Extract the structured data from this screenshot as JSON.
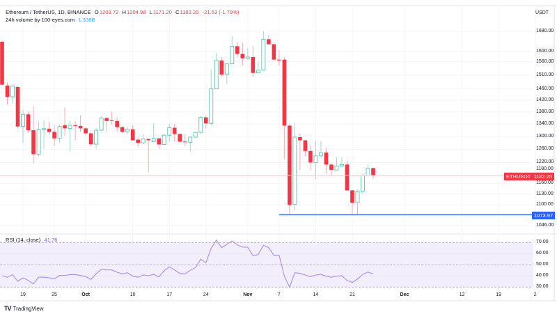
{
  "header": {
    "symbol": "Ethereum / TetherUS, 1D, BINANCE",
    "o_label": "O",
    "o_value": "1203.72",
    "h_label": "H",
    "h_value": "1204.98",
    "l_label": "L",
    "l_value": "1171.20",
    "c_label": "C",
    "c_value": "1182.20",
    "change": "-21.53 (-1.79%)",
    "volume_label": "24h volume by 100-eyes.com",
    "volume_value": "1.338B"
  },
  "price_axis": {
    "currency": "USDT",
    "labels": [
      "1680.00",
      "1600.00",
      "1560.00",
      "1510.00",
      "1460.00",
      "1420.00",
      "1380.00",
      "1340.00",
      "1300.00",
      "1260.00",
      "1220.00",
      "1180.00",
      "1160.00",
      "1130.00",
      "1100.00",
      "1046.00"
    ]
  },
  "tags": {
    "symbol_tag": "ETHUSDT",
    "last_price": "1182.20",
    "low_line": "1073.97"
  },
  "rsi": {
    "label": "RSI (14, close)",
    "value": "41.76",
    "axis_labels": [
      "70.00",
      "60.00",
      "50.00",
      "40.00",
      "30.00"
    ]
  },
  "time_axis": [
    {
      "label": "19",
      "index": 4
    },
    {
      "label": "25",
      "index": 10
    },
    {
      "label": "Oct",
      "index": 16,
      "bold": true
    },
    {
      "label": "10",
      "index": 25
    },
    {
      "label": "17",
      "index": 32
    },
    {
      "label": "24",
      "index": 39
    },
    {
      "label": "Nov",
      "index": 47,
      "bold": true
    },
    {
      "label": "7",
      "index": 53
    },
    {
      "label": "14",
      "index": 60
    },
    {
      "label": "21",
      "index": 67
    },
    {
      "label": "Dec",
      "index": 77,
      "bold": true
    },
    {
      "label": "12",
      "index": 88
    },
    {
      "label": "19",
      "index": 95
    },
    {
      "label": "2",
      "index": 102
    }
  ],
  "footer": {
    "brand": "TradingView"
  },
  "colors": {
    "up": "#5cc3b0",
    "down": "#f23645",
    "rsi_line": "#a98de6",
    "rsi_fill": "#f2eefb",
    "low_line": "#2962ff"
  },
  "chart_data": {
    "type": "candlestick",
    "ohlc_order": [
      "open",
      "high",
      "low",
      "close"
    ],
    "candles": [
      [
        1638,
        1640,
        1470,
        1475
      ],
      [
        1472,
        1482,
        1405,
        1432
      ],
      [
        1432,
        1478,
        1408,
        1470
      ],
      [
        1467,
        1470,
        1325,
        1332
      ],
      [
        1332,
        1388,
        1280,
        1372
      ],
      [
        1372,
        1382,
        1312,
        1320
      ],
      [
        1320,
        1400,
        1218,
        1245
      ],
      [
        1245,
        1348,
        1238,
        1322
      ],
      [
        1322,
        1352,
        1262,
        1325
      ],
      [
        1325,
        1348,
        1305,
        1315
      ],
      [
        1315,
        1335,
        1270,
        1294
      ],
      [
        1294,
        1338,
        1280,
        1332
      ],
      [
        1336,
        1396,
        1302,
        1326
      ],
      [
        1326,
        1352,
        1255,
        1336
      ],
      [
        1336,
        1350,
        1288,
        1334
      ],
      [
        1334,
        1368,
        1315,
        1326
      ],
      [
        1326,
        1330,
        1303,
        1310
      ],
      [
        1310,
        1316,
        1270,
        1276
      ],
      [
        1276,
        1328,
        1262,
        1320
      ],
      [
        1320,
        1366,
        1318,
        1360
      ],
      [
        1360,
        1362,
        1316,
        1350
      ],
      [
        1352,
        1382,
        1338,
        1350
      ],
      [
        1350,
        1360,
        1316,
        1330
      ],
      [
        1330,
        1334,
        1310,
        1315
      ],
      [
        1315,
        1330,
        1308,
        1323
      ],
      [
        1323,
        1336,
        1288,
        1288
      ],
      [
        1290,
        1298,
        1268,
        1280
      ],
      [
        1280,
        1306,
        1276,
        1292
      ],
      [
        1292,
        1294,
        1190,
        1288
      ],
      [
        1284,
        1342,
        1284,
        1294
      ],
      [
        1294,
        1296,
        1262,
        1275
      ],
      [
        1275,
        1308,
        1274,
        1304
      ],
      [
        1304,
        1340,
        1284,
        1328
      ],
      [
        1328,
        1340,
        1284,
        1308
      ],
      [
        1308,
        1310,
        1280,
        1284
      ],
      [
        1284,
        1308,
        1270,
        1282
      ],
      [
        1282,
        1300,
        1252,
        1298
      ],
      [
        1298,
        1316,
        1296,
        1313
      ],
      [
        1313,
        1368,
        1308,
        1362
      ],
      [
        1362,
        1368,
        1326,
        1342
      ],
      [
        1342,
        1530,
        1335,
        1460
      ],
      [
        1460,
        1595,
        1460,
        1565
      ],
      [
        1565,
        1578,
        1505,
        1512
      ],
      [
        1512,
        1552,
        1478,
        1552
      ],
      [
        1552,
        1660,
        1550,
        1620
      ],
      [
        1620,
        1638,
        1577,
        1590
      ],
      [
        1590,
        1633,
        1545,
        1573
      ],
      [
        1573,
        1612,
        1567,
        1578
      ],
      [
        1578,
        1620,
        1505,
        1518
      ],
      [
        1518,
        1560,
        1518,
        1528
      ],
      [
        1528,
        1680,
        1525,
        1648
      ],
      [
        1648,
        1666,
        1625,
        1628
      ],
      [
        1628,
        1638,
        1565,
        1568
      ],
      [
        1568,
        1605,
        1545,
        1565
      ],
      [
        1568,
        1578,
        1230,
        1335
      ],
      [
        1335,
        1340,
        1073,
        1100
      ],
      [
        1102,
        1345,
        1085,
        1298
      ],
      [
        1298,
        1310,
        1198,
        1288
      ],
      [
        1288,
        1288,
        1238,
        1255
      ],
      [
        1255,
        1272,
        1198,
        1220
      ],
      [
        1220,
        1286,
        1172,
        1240
      ],
      [
        1240,
        1286,
        1235,
        1250
      ],
      [
        1250,
        1264,
        1188,
        1214
      ],
      [
        1214,
        1216,
        1180,
        1198
      ],
      [
        1198,
        1236,
        1198,
        1210
      ],
      [
        1210,
        1236,
        1208,
        1214
      ],
      [
        1214,
        1225,
        1140,
        1140
      ],
      [
        1140,
        1142,
        1075,
        1106
      ],
      [
        1106,
        1142,
        1073.97,
        1138
      ],
      [
        1138,
        1188,
        1128,
        1182
      ],
      [
        1182,
        1215,
        1180,
        1203.72
      ],
      [
        1203.72,
        1204.98,
        1171.2,
        1182.2
      ]
    ],
    "last_price": 1182.2,
    "low_line_price": 1073.97,
    "price_range": [
      1046,
      1680
    ],
    "scale": "log",
    "rsi_values": [
      40.2,
      38.8,
      41.2,
      35.2,
      38.3,
      36,
      32.9,
      38.8,
      38.8,
      38.3,
      37.3,
      40.4,
      40.4,
      41.2,
      41.2,
      40.4,
      39.4,
      36.9,
      41.9,
      46,
      45.4,
      45.4,
      43.3,
      41.9,
      42.9,
      39.8,
      38.8,
      40.8,
      40.2,
      41.4,
      39.1,
      44.6,
      48.1,
      45.4,
      42.3,
      41.9,
      45,
      47.5,
      55,
      51.9,
      64.8,
      72.1,
      65.4,
      68.3,
      71.4,
      67.9,
      65.8,
      65.8,
      58.1,
      59.1,
      67.5,
      65.4,
      58.5,
      58.5,
      39.8,
      29.8,
      42.9,
      42.3,
      40.8,
      39.4,
      40.8,
      41.4,
      39.8,
      38.8,
      39.8,
      40.2,
      36,
      34.1,
      37.3,
      41.4,
      43.5,
      41.76
    ],
    "rsi_range": [
      30,
      70
    ],
    "rsi_levels": [
      70,
      50,
      30
    ]
  }
}
